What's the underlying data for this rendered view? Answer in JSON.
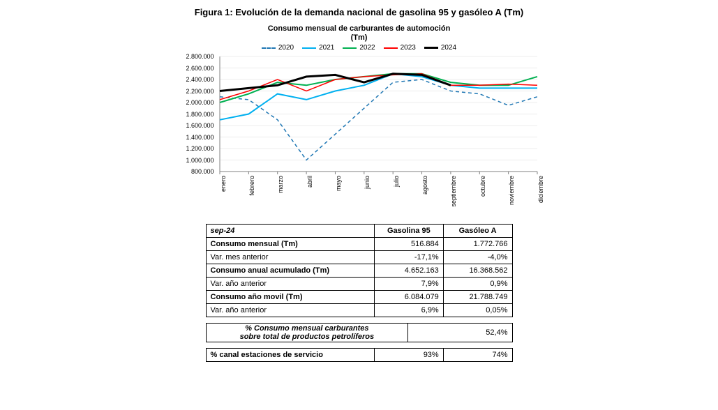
{
  "figure_title": "Figura 1: Evolución de la demanda nacional de gasolina 95 y gasóleo A (Tm)",
  "chart": {
    "type": "line",
    "title_line1": "Consumo mensual de carburantes de automoción",
    "title_line2": "(Tm)",
    "background_color": "#ffffff",
    "grid_color": "#d9d9d9",
    "axis_color": "#808080",
    "label_fontsize": 9,
    "title_fontsize": 11,
    "ylim": [
      800000,
      2800000
    ],
    "ytick_step": 200000,
    "ytick_labels": [
      "800.000",
      "1.000.000",
      "1.200.000",
      "1.400.000",
      "1.600.000",
      "1.800.000",
      "2.000.000",
      "2.200.000",
      "2.400.000",
      "2.600.000",
      "2.800.000"
    ],
    "categories": [
      "enero",
      "febrero",
      "marzo",
      "abril",
      "mayo",
      "junio",
      "julio",
      "agosto",
      "septiembre",
      "octubre",
      "noviembre",
      "diciembre"
    ],
    "series": [
      {
        "name": "2020",
        "color": "#1f77b4",
        "dash": "dashed",
        "width": 1.5,
        "values": [
          2100000,
          2050000,
          1700000,
          1000000,
          1450000,
          1900000,
          2350000,
          2400000,
          2200000,
          2150000,
          1950000,
          2100000
        ]
      },
      {
        "name": "2021",
        "color": "#00b0f0",
        "dash": "solid",
        "width": 2,
        "values": [
          1700000,
          1800000,
          2150000,
          2050000,
          2200000,
          2300000,
          2500000,
          2450000,
          2300000,
          2250000,
          2250000,
          2250000
        ]
      },
      {
        "name": "2022",
        "color": "#00b050",
        "dash": "solid",
        "width": 2,
        "values": [
          2000000,
          2150000,
          2350000,
          2300000,
          2400000,
          2450000,
          2500000,
          2500000,
          2350000,
          2300000,
          2300000,
          2450000
        ]
      },
      {
        "name": "2023",
        "color": "#ff0000",
        "dash": "solid",
        "width": 1.5,
        "values": [
          2050000,
          2200000,
          2400000,
          2200000,
          2400000,
          2450000,
          2480000,
          2500000,
          2300000,
          2300000,
          2320000,
          2300000
        ]
      },
      {
        "name": "2024",
        "color": "#000000",
        "dash": "solid",
        "width": 3,
        "values": [
          2200000,
          2250000,
          2300000,
          2450000,
          2480000,
          2350000,
          2500000,
          2480000,
          2300000,
          null,
          null,
          null
        ]
      }
    ]
  },
  "main_table": {
    "period": "sep-24",
    "columns": [
      "Gasolina 95",
      "Gasóleo A"
    ],
    "rows": [
      {
        "label": "Consumo mensual (Tm)",
        "vals": [
          "516.884",
          "1.772.766"
        ],
        "bold": true
      },
      {
        "label": "Var.  mes anterior",
        "vals": [
          "-17,1%",
          "-4,0%"
        ],
        "bold": false
      },
      {
        "label": "Consumo anual acumulado (Tm)",
        "vals": [
          "4.652.163",
          "16.368.562"
        ],
        "bold": true
      },
      {
        "label": "Var. año anterior",
        "vals": [
          "7,9%",
          "0,9%"
        ],
        "bold": false
      },
      {
        "label": "Consumo año movil (Tm)",
        "vals": [
          "6.084.079",
          "21.788.749"
        ],
        "bold": true
      },
      {
        "label": "Var. año anterior",
        "vals": [
          "6,9%",
          "0,05%"
        ],
        "bold": false
      }
    ]
  },
  "pct_table": {
    "label_line1": "% Consumo mensual carburantes",
    "label_line2": "sobre total de productos petrolíferos",
    "value": "52,4%"
  },
  "channel_table": {
    "label": "% canal estaciones de servicio",
    "vals": [
      "93%",
      "74%"
    ]
  }
}
